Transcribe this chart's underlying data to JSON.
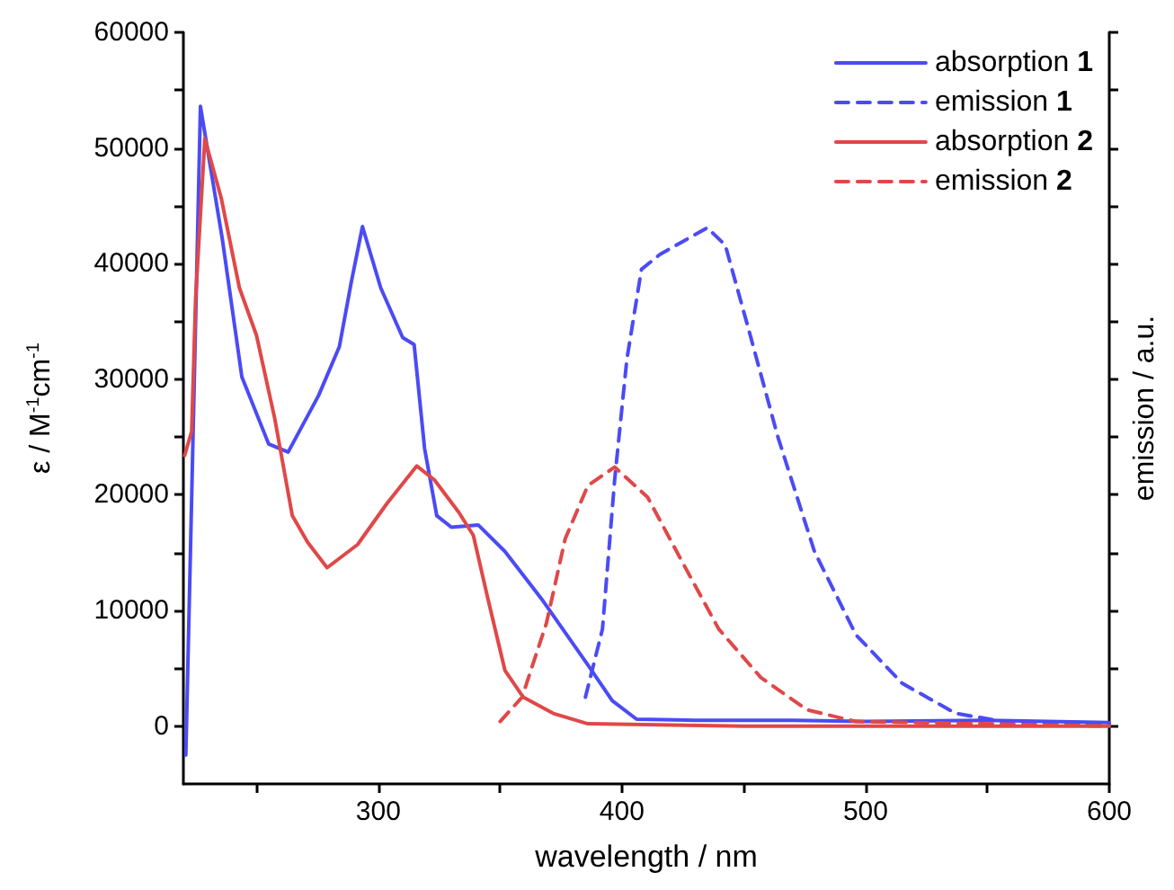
{
  "chart_data": {
    "type": "line",
    "xlabel": "wavelength / nm",
    "ylabel": "ε / M$^{-1}$cm$^{-1}$",
    "y2label": "emission / a.u.",
    "xlim": [
      220,
      600
    ],
    "xticks": [
      {
        "value": 250,
        "label": null
      },
      300,
      {
        "value": 350,
        "label": null
      },
      400,
      {
        "value": 450,
        "label": null
      },
      500,
      {
        "value": 550,
        "label": null
      },
      600
    ],
    "ylim": [
      -5000,
      60000
    ],
    "yticks": [
      0,
      {
        "value": 5000,
        "label": null
      },
      10000,
      {
        "value": 15000,
        "label": null
      },
      20000,
      {
        "value": 25000,
        "label": null
      },
      30000,
      {
        "value": 35000,
        "label": null
      },
      40000,
      {
        "value": 45000,
        "label": null
      },
      50000,
      {
        "value": 55000,
        "label": null
      },
      60000
    ],
    "grid": false,
    "legend": "top right",
    "marker": "none",
    "series": [
      {
        "name": "absorption 1",
        "color": "#4b4bf5",
        "line_style": "solid",
        "x": [
          221,
          223,
          227,
          236,
          244,
          255,
          263,
          275.5,
          284,
          289,
          293.5,
          301,
          310,
          314.7,
          319,
          324,
          330,
          341,
          352,
          367,
          386,
          396,
          406,
          430,
          470,
          500,
          550,
          600
        ],
        "values": [
          -2500,
          16000,
          53600,
          42100,
          30200,
          24400,
          23700,
          28600,
          32800,
          38500,
          43200,
          37900,
          33600,
          33000,
          24000,
          18200,
          17200,
          17400,
          15100,
          11000,
          5300,
          2200,
          600,
          500,
          500,
          400,
          500,
          300
        ]
      },
      {
        "name": "emission 1",
        "color": "#4b4bf5",
        "line_style": "dashed",
        "x": [
          385,
          392,
          397,
          402,
          408,
          415.6,
          435,
          442.4,
          452,
          464,
          479,
          496,
          515,
          537,
          556.5,
          600
        ],
        "values": [
          2500,
          8400,
          21300,
          31700,
          39500,
          40800,
          43100,
          41600,
          34300,
          25000,
          15100,
          7900,
          3700,
          1100,
          400,
          200
        ]
      },
      {
        "name": "absorption 2",
        "color": "#e04848",
        "line_style": "solid",
        "x": [
          220.5,
          223.4,
          225,
          228.8,
          235.5,
          243,
          250,
          257.5,
          264.7,
          271,
          279,
          291.5,
          303.7,
          315.8,
          323,
          333,
          339,
          345,
          352,
          359.5,
          371.8,
          386,
          450,
          600
        ],
        "values": [
          23400,
          25500,
          36900,
          50800,
          45700,
          37900,
          33800,
          26600,
          18200,
          15900,
          13700,
          15700,
          19300,
          22500,
          21300,
          18500,
          16500,
          11000,
          4800,
          2500,
          1100,
          200,
          0,
          0
        ]
      },
      {
        "name": "emission 2",
        "color": "#e04848",
        "line_style": "dashed",
        "x": [
          350,
          359,
          369,
          376.7,
          386,
          397,
          410.5,
          425,
          439.7,
          457,
          476,
          496,
          600
        ],
        "values": [
          400,
          2500,
          8900,
          16200,
          20800,
          22400,
          19800,
          14100,
          8400,
          4200,
          1400,
          400,
          0
        ]
      }
    ]
  }
}
